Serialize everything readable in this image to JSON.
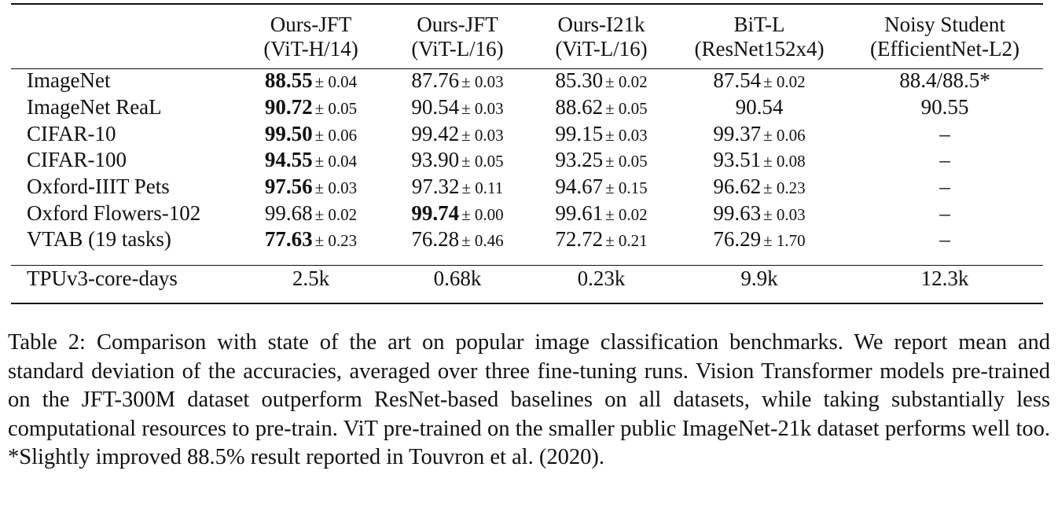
{
  "table": {
    "columns": [
      {
        "line1": "Ours-JFT",
        "line2": "(ViT-H/14)"
      },
      {
        "line1": "Ours-JFT",
        "line2": "(ViT-L/16)"
      },
      {
        "line1": "Ours-I21k",
        "line2": "(ViT-L/16)"
      },
      {
        "line1": "BiT-L",
        "line2": "(ResNet152x4)"
      },
      {
        "line1": "Noisy Student",
        "line2": "(EfficientNet-L2)"
      }
    ],
    "rows": [
      {
        "name": "ImageNet",
        "cells": [
          {
            "value": "88.55",
            "pm": "± 0.04",
            "best": true
          },
          {
            "value": "87.76",
            "pm": "± 0.03"
          },
          {
            "value": "85.30",
            "pm": "± 0.02"
          },
          {
            "value": "87.54",
            "pm": "± 0.02"
          },
          {
            "value": "88.4/88.5*"
          }
        ]
      },
      {
        "name": "ImageNet ReaL",
        "cells": [
          {
            "value": "90.72",
            "pm": "± 0.05",
            "best": true
          },
          {
            "value": "90.54",
            "pm": "± 0.03"
          },
          {
            "value": "88.62",
            "pm": "± 0.05"
          },
          {
            "value": "90.54"
          },
          {
            "value": "90.55"
          }
        ]
      },
      {
        "name": "CIFAR-10",
        "cells": [
          {
            "value": "99.50",
            "pm": "± 0.06",
            "best": true
          },
          {
            "value": "99.42",
            "pm": "± 0.03"
          },
          {
            "value": "99.15",
            "pm": "± 0.03"
          },
          {
            "value": "99.37",
            "pm": "± 0.06"
          },
          {
            "value": "–"
          }
        ]
      },
      {
        "name": "CIFAR-100",
        "cells": [
          {
            "value": "94.55",
            "pm": "± 0.04",
            "best": true
          },
          {
            "value": "93.90",
            "pm": "± 0.05"
          },
          {
            "value": "93.25",
            "pm": "± 0.05"
          },
          {
            "value": "93.51",
            "pm": "± 0.08"
          },
          {
            "value": "–"
          }
        ]
      },
      {
        "name": "Oxford-IIIT Pets",
        "cells": [
          {
            "value": "97.56",
            "pm": "± 0.03",
            "best": true
          },
          {
            "value": "97.32",
            "pm": "± 0.11"
          },
          {
            "value": "94.67",
            "pm": "± 0.15"
          },
          {
            "value": "96.62",
            "pm": "± 0.23"
          },
          {
            "value": "–"
          }
        ]
      },
      {
        "name": "Oxford Flowers-102",
        "cells": [
          {
            "value": "99.68",
            "pm": "± 0.02"
          },
          {
            "value": "99.74",
            "pm": "± 0.00",
            "best": true
          },
          {
            "value": "99.61",
            "pm": "± 0.02"
          },
          {
            "value": "99.63",
            "pm": "± 0.03"
          },
          {
            "value": "–"
          }
        ]
      },
      {
        "name": "VTAB (19 tasks)",
        "cells": [
          {
            "value": "77.63",
            "pm": "± 0.23",
            "best": true
          },
          {
            "value": "76.28",
            "pm": "± 0.46"
          },
          {
            "value": "72.72",
            "pm": "± 0.21"
          },
          {
            "value": "76.29",
            "pm": "± 1.70"
          },
          {
            "value": "–"
          }
        ]
      }
    ],
    "cost_row": {
      "name": "TPUv3-core-days",
      "values": [
        "2.5k",
        "0.68k",
        "0.23k",
        "9.9k",
        "12.3k"
      ]
    }
  },
  "caption": {
    "label": "Table 2:",
    "text": "Comparison with state of the art on popular image classification benchmarks. We report mean and standard deviation of the accuracies, averaged over three fine-tuning runs. Vision Transformer models pre-trained on the JFT-300M dataset outperform ResNet-based baselines on all datasets, while taking substantially less computational resources to pre-train. ViT pre-trained on the smaller public ImageNet-21k dataset performs well too. *Slightly improved 88.5% result reported in Touvron et al. (2020)."
  }
}
